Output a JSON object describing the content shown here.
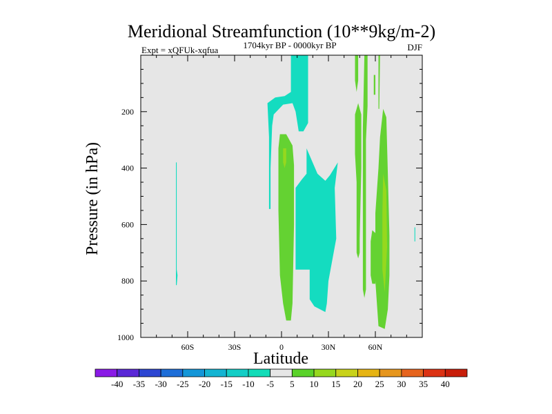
{
  "chart_data": {
    "type": "contour",
    "title": "Meridional Streamfunction (10**9kg/m-2)",
    "subtitle": "1704kyr BP - 0000kyr BP",
    "left_annotation": "Expt = xQFUk-xqfua",
    "right_annotation": "DJF",
    "xlabel": "Latitude",
    "ylabel": "Pressure (in hPa)",
    "xlim": [
      -90,
      90
    ],
    "ylim": [
      1000,
      0
    ],
    "xticks": [
      {
        "value": -60,
        "label": "60S"
      },
      {
        "value": -30,
        "label": "30S"
      },
      {
        "value": 0,
        "label": "0"
      },
      {
        "value": 30,
        "label": "30N"
      },
      {
        "value": 60,
        "label": "60N"
      }
    ],
    "yticks": [
      {
        "value": 200,
        "label": "200"
      },
      {
        "value": 400,
        "label": "400"
      },
      {
        "value": 600,
        "label": "600"
      },
      {
        "value": 800,
        "label": "800"
      },
      {
        "value": 1000,
        "label": "1000"
      }
    ],
    "background_color": "#e6e6e6",
    "colorbar": {
      "levels": [
        "-40",
        "-35",
        "-30",
        "-25",
        "-20",
        "-15",
        "-10",
        "-5",
        "5",
        "10",
        "15",
        "20",
        "25",
        "30",
        "35",
        "40"
      ],
      "colors": [
        "#8a1ae6",
        "#5a28d6",
        "#2d46d2",
        "#1e6ed8",
        "#1496d8",
        "#14b4d2",
        "#14cec6",
        "#12dcb8",
        "#e6e6e6",
        "#5ad22a",
        "#96d81e",
        "#c8d21a",
        "#e6b414",
        "#e6961e",
        "#e6641e",
        "#dc3214",
        "#c81e0a"
      ]
    },
    "regions": [
      {
        "level": "-10 to -5",
        "color": "#14dcc0",
        "points": [
          [
            -67.5,
            380
          ],
          [
            -67,
            380
          ],
          [
            -67,
            760
          ],
          [
            -66.5,
            780
          ],
          [
            -67,
            815
          ],
          [
            -67.5,
            815
          ]
        ]
      },
      {
        "level": "-10 to -5",
        "color": "#14dcc0",
        "points": [
          [
            6,
            0
          ],
          [
            17,
            0
          ],
          [
            17,
            240
          ],
          [
            14,
            270
          ],
          [
            11,
            270
          ],
          [
            9,
            200
          ],
          [
            7,
            170
          ],
          [
            1,
            175
          ],
          [
            -5,
            210
          ],
          [
            -6,
            250
          ],
          [
            -7,
            400
          ],
          [
            -7,
            545
          ],
          [
            -8,
            545
          ],
          [
            -8,
            290
          ],
          [
            -9,
            170
          ],
          [
            -4,
            150
          ],
          [
            2,
            145
          ],
          [
            6,
            130
          ]
        ]
      },
      {
        "level": "-10 to -5",
        "color": "#14dcc0",
        "points": [
          [
            16,
            330
          ],
          [
            23,
            420
          ],
          [
            28,
            445
          ],
          [
            31,
            425
          ],
          [
            36,
            380
          ],
          [
            34,
            470
          ],
          [
            35,
            650
          ],
          [
            30,
            800
          ],
          [
            29,
            880
          ],
          [
            28,
            910
          ],
          [
            21,
            890
          ],
          [
            18,
            865
          ],
          [
            18,
            760
          ],
          [
            9,
            760
          ],
          [
            9,
            470
          ],
          [
            13,
            440
          ],
          [
            16,
            420
          ]
        ]
      },
      {
        "level": "5 to 10",
        "color": "#64d232",
        "points": [
          [
            -1,
            280
          ],
          [
            3,
            280
          ],
          [
            7,
            320
          ],
          [
            8,
            390
          ],
          [
            8,
            600
          ],
          [
            7,
            880
          ],
          [
            6,
            940
          ],
          [
            3,
            940
          ],
          [
            1,
            880
          ],
          [
            -1,
            780
          ],
          [
            -2,
            550
          ],
          [
            -2,
            330
          ]
        ]
      },
      {
        "level": "5 to 10",
        "color": "#64d232",
        "points": [
          [
            47,
            0
          ],
          [
            49,
            0
          ],
          [
            49,
            90
          ],
          [
            48,
            130
          ],
          [
            47,
            90
          ]
        ]
      },
      {
        "level": "5 to 10",
        "color": "#64d232",
        "points": [
          [
            49,
            170
          ],
          [
            51,
            210
          ],
          [
            51,
            400
          ],
          [
            50,
            650
          ],
          [
            50,
            700
          ],
          [
            49,
            720
          ],
          [
            48,
            700
          ],
          [
            48,
            450
          ],
          [
            47,
            350
          ],
          [
            47,
            210
          ]
        ]
      },
      {
        "level": "5 to 10",
        "color": "#64d232",
        "points": [
          [
            53,
            0
          ],
          [
            55,
            0
          ],
          [
            55,
            180
          ],
          [
            54,
            300
          ],
          [
            54,
            500
          ],
          [
            54,
            830
          ],
          [
            53,
            860
          ],
          [
            52,
            830
          ],
          [
            52,
            500
          ],
          [
            52,
            260
          ]
        ]
      },
      {
        "level": "5 to 10",
        "color": "#64d232",
        "points": [
          [
            59,
            70
          ],
          [
            60,
            70
          ],
          [
            60,
            140
          ],
          [
            59,
            140
          ]
        ]
      },
      {
        "level": "5 to 10",
        "color": "#64d232",
        "points": [
          [
            62,
            0
          ],
          [
            63,
            0
          ],
          [
            62.5,
            190
          ],
          [
            62,
            190
          ]
        ]
      },
      {
        "level": "5 to 10",
        "color": "#64d232",
        "points": [
          [
            65,
            190
          ],
          [
            67,
            220
          ],
          [
            68,
            420
          ],
          [
            69,
            640
          ],
          [
            69,
            780
          ],
          [
            68,
            900
          ],
          [
            66,
            970
          ],
          [
            62,
            960
          ],
          [
            60,
            800
          ],
          [
            60,
            560
          ],
          [
            62,
            400
          ],
          [
            63,
            290
          ]
        ]
      },
      {
        "level": "5 to 10",
        "color": "#64d232",
        "points": [
          [
            58,
            620
          ],
          [
            60,
            630
          ],
          [
            60,
            810
          ],
          [
            58,
            810
          ],
          [
            57,
            780
          ],
          [
            57,
            660
          ]
        ]
      },
      {
        "level": "-10 to -5",
        "color": "#14dcc0",
        "points": [
          [
            85,
            610
          ],
          [
            85.5,
            610
          ],
          [
            85.5,
            660
          ],
          [
            85,
            660
          ]
        ]
      },
      {
        "level": "10 to 15",
        "color": "#96d81e",
        "points": [
          [
            1,
            330
          ],
          [
            3,
            330
          ],
          [
            3,
            380
          ],
          [
            2,
            400
          ],
          [
            1,
            380
          ]
        ]
      },
      {
        "level": "10 to 15",
        "color": "#96d81e",
        "points": [
          [
            65,
            420
          ],
          [
            67,
            480
          ],
          [
            67.5,
            680
          ],
          [
            66,
            840
          ],
          [
            64.5,
            760
          ],
          [
            64.5,
            560
          ]
        ]
      }
    ]
  }
}
